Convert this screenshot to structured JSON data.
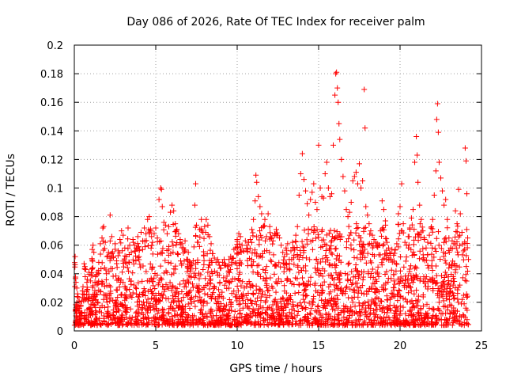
{
  "chart_data": {
    "type": "scatter",
    "title": "Day 086 of 2026, Rate Of TEC Index for receiver palm",
    "xlabel": "GPS time / hours",
    "ylabel": "ROTI / TECUs",
    "xlim": [
      0,
      25
    ],
    "ylim": [
      0,
      0.2
    ],
    "x_ticks": [
      0,
      5,
      10,
      15,
      20,
      25
    ],
    "x_tick_labels": [
      "0",
      "5",
      "10",
      "15",
      "20",
      "25"
    ],
    "y_ticks": [
      0,
      0.02,
      0.04,
      0.06,
      0.08,
      0.1,
      0.12,
      0.14,
      0.16,
      0.18,
      0.2
    ],
    "y_tick_labels": [
      "0",
      "0.02",
      "0.04",
      "0.06",
      "0.08",
      "0.1",
      "0.12",
      "0.14",
      "0.16",
      "0.18",
      "0.2"
    ],
    "grid": true,
    "marker": "+",
    "marker_color": "#ff0000",
    "series": [
      {
        "name": "ROTI",
        "points": [
          [
            0.05,
            0.052
          ],
          [
            0.1,
            0.034
          ],
          [
            0.15,
            0.03
          ],
          [
            0.2,
            0.026
          ],
          [
            0.3,
            0.021
          ],
          [
            0.4,
            0.018
          ],
          [
            0.5,
            0.028
          ],
          [
            0.6,
            0.047
          ],
          [
            0.65,
            0.045
          ],
          [
            0.7,
            0.043
          ],
          [
            0.8,
            0.036
          ],
          [
            0.9,
            0.041
          ],
          [
            1.0,
            0.035
          ],
          [
            1.1,
            0.057
          ],
          [
            1.15,
            0.06
          ],
          [
            1.2,
            0.055
          ],
          [
            1.3,
            0.038
          ],
          [
            1.4,
            0.041
          ],
          [
            1.5,
            0.048
          ],
          [
            1.6,
            0.061
          ],
          [
            1.7,
            0.065
          ],
          [
            1.75,
            0.072
          ],
          [
            1.8,
            0.073
          ],
          [
            1.9,
            0.062
          ],
          [
            2.0,
            0.052
          ],
          [
            2.1,
            0.055
          ],
          [
            2.2,
            0.081
          ],
          [
            2.3,
            0.066
          ],
          [
            2.4,
            0.052
          ],
          [
            2.5,
            0.061
          ],
          [
            2.6,
            0.049
          ],
          [
            2.7,
            0.056
          ],
          [
            2.8,
            0.064
          ],
          [
            2.9,
            0.07
          ],
          [
            3.0,
            0.067
          ],
          [
            3.1,
            0.058
          ],
          [
            3.2,
            0.052
          ],
          [
            3.3,
            0.072
          ],
          [
            3.4,
            0.06
          ],
          [
            3.5,
            0.055
          ],
          [
            3.6,
            0.064
          ],
          [
            3.7,
            0.06
          ],
          [
            3.8,
            0.058
          ],
          [
            3.9,
            0.066
          ],
          [
            4.0,
            0.057
          ],
          [
            4.1,
            0.069
          ],
          [
            4.2,
            0.063
          ],
          [
            4.3,
            0.072
          ],
          [
            4.4,
            0.068
          ],
          [
            4.5,
            0.078
          ],
          [
            4.6,
            0.08
          ],
          [
            4.7,
            0.07
          ],
          [
            4.8,
            0.062
          ],
          [
            4.9,
            0.068
          ],
          [
            5.0,
            0.072
          ],
          [
            5.1,
            0.065
          ],
          [
            5.2,
            0.092
          ],
          [
            5.3,
            0.1
          ],
          [
            5.35,
            0.099
          ],
          [
            5.4,
            0.087
          ],
          [
            5.5,
            0.076
          ],
          [
            5.6,
            0.074
          ],
          [
            5.7,
            0.068
          ],
          [
            5.8,
            0.073
          ],
          [
            5.9,
            0.083
          ],
          [
            6.0,
            0.088
          ],
          [
            6.1,
            0.084
          ],
          [
            6.2,
            0.075
          ],
          [
            6.3,
            0.071
          ],
          [
            6.4,
            0.068
          ],
          [
            6.5,
            0.064
          ],
          [
            6.6,
            0.061
          ],
          [
            6.7,
            0.058
          ],
          [
            6.8,
            0.063
          ],
          [
            6.9,
            0.05
          ],
          [
            7.0,
            0.055
          ],
          [
            7.1,
            0.048
          ],
          [
            7.2,
            0.047
          ],
          [
            7.3,
            0.049
          ],
          [
            7.4,
            0.088
          ],
          [
            7.45,
            0.103
          ],
          [
            7.5,
            0.074
          ],
          [
            7.6,
            0.062
          ],
          [
            7.7,
            0.071
          ],
          [
            7.8,
            0.078
          ],
          [
            7.9,
            0.069
          ],
          [
            8.0,
            0.073
          ],
          [
            8.1,
            0.078
          ],
          [
            8.2,
            0.074
          ],
          [
            8.3,
            0.066
          ],
          [
            8.4,
            0.061
          ],
          [
            8.5,
            0.054
          ],
          [
            8.6,
            0.051
          ],
          [
            8.7,
            0.048
          ],
          [
            8.8,
            0.05
          ],
          [
            8.9,
            0.046
          ],
          [
            9.0,
            0.044
          ],
          [
            9.1,
            0.048
          ],
          [
            9.2,
            0.05
          ],
          [
            9.3,
            0.046
          ],
          [
            9.4,
            0.045
          ],
          [
            9.5,
            0.05
          ],
          [
            9.6,
            0.052
          ],
          [
            9.7,
            0.051
          ],
          [
            9.8,
            0.057
          ],
          [
            9.9,
            0.058
          ],
          [
            10.0,
            0.064
          ],
          [
            10.1,
            0.068
          ],
          [
            10.2,
            0.066
          ],
          [
            10.3,
            0.06
          ],
          [
            10.4,
            0.056
          ],
          [
            10.5,
            0.063
          ],
          [
            10.6,
            0.06
          ],
          [
            10.7,
            0.062
          ],
          [
            10.8,
            0.064
          ],
          [
            10.9,
            0.071
          ],
          [
            11.0,
            0.078
          ],
          [
            11.1,
            0.091
          ],
          [
            11.15,
            0.109
          ],
          [
            11.2,
            0.104
          ],
          [
            11.3,
            0.094
          ],
          [
            11.4,
            0.087
          ],
          [
            11.5,
            0.082
          ],
          [
            11.6,
            0.073
          ],
          [
            11.7,
            0.078
          ],
          [
            11.8,
            0.066
          ],
          [
            11.9,
            0.082
          ],
          [
            12.0,
            0.073
          ],
          [
            12.1,
            0.065
          ],
          [
            12.2,
            0.063
          ],
          [
            12.3,
            0.068
          ],
          [
            12.4,
            0.071
          ],
          [
            12.5,
            0.067
          ],
          [
            12.6,
            0.065
          ],
          [
            12.7,
            0.06
          ],
          [
            12.8,
            0.055
          ],
          [
            12.9,
            0.052
          ],
          [
            13.0,
            0.058
          ],
          [
            13.1,
            0.061
          ],
          [
            13.2,
            0.05
          ],
          [
            13.3,
            0.056
          ],
          [
            13.4,
            0.062
          ],
          [
            13.5,
            0.058
          ],
          [
            13.6,
            0.067
          ],
          [
            13.7,
            0.073
          ],
          [
            13.8,
            0.095
          ],
          [
            13.9,
            0.11
          ],
          [
            14.0,
            0.124
          ],
          [
            14.1,
            0.106
          ],
          [
            14.2,
            0.098
          ],
          [
            14.3,
            0.089
          ],
          [
            14.4,
            0.081
          ],
          [
            14.5,
            0.092
          ],
          [
            14.6,
            0.097
          ],
          [
            14.7,
            0.103
          ],
          [
            14.8,
            0.09
          ],
          [
            14.9,
            0.085
          ],
          [
            15.0,
            0.13
          ],
          [
            15.1,
            0.1
          ],
          [
            15.2,
            0.094
          ],
          [
            15.3,
            0.093
          ],
          [
            15.4,
            0.11
          ],
          [
            15.5,
            0.118
          ],
          [
            15.6,
            0.1
          ],
          [
            15.7,
            0.094
          ],
          [
            15.8,
            0.096
          ],
          [
            15.9,
            0.13
          ],
          [
            16.0,
            0.165
          ],
          [
            16.05,
            0.18
          ],
          [
            16.1,
            0.181
          ],
          [
            16.15,
            0.17
          ],
          [
            16.2,
            0.16
          ],
          [
            16.25,
            0.145
          ],
          [
            16.3,
            0.134
          ],
          [
            16.4,
            0.12
          ],
          [
            16.5,
            0.108
          ],
          [
            16.6,
            0.098
          ],
          [
            16.7,
            0.085
          ],
          [
            16.8,
            0.08
          ],
          [
            16.9,
            0.083
          ],
          [
            17.0,
            0.09
          ],
          [
            17.1,
            0.105
          ],
          [
            17.2,
            0.108
          ],
          [
            17.3,
            0.111
          ],
          [
            17.4,
            0.103
          ],
          [
            17.5,
            0.117
          ],
          [
            17.6,
            0.1
          ],
          [
            17.7,
            0.105
          ],
          [
            17.8,
            0.169
          ],
          [
            17.85,
            0.142
          ],
          [
            17.9,
            0.087
          ],
          [
            18.0,
            0.081
          ],
          [
            18.1,
            0.075
          ],
          [
            18.2,
            0.07
          ],
          [
            18.3,
            0.067
          ],
          [
            18.4,
            0.064
          ],
          [
            18.5,
            0.062
          ],
          [
            18.6,
            0.061
          ],
          [
            18.7,
            0.06
          ],
          [
            18.8,
            0.07
          ],
          [
            18.9,
            0.091
          ],
          [
            19.0,
            0.085
          ],
          [
            19.1,
            0.077
          ],
          [
            19.2,
            0.062
          ],
          [
            19.3,
            0.058
          ],
          [
            19.4,
            0.054
          ],
          [
            19.5,
            0.057
          ],
          [
            19.6,
            0.053
          ],
          [
            19.7,
            0.057
          ],
          [
            19.8,
            0.061
          ],
          [
            19.9,
            0.082
          ],
          [
            20.0,
            0.087
          ],
          [
            20.1,
            0.103
          ],
          [
            20.2,
            0.075
          ],
          [
            20.3,
            0.062
          ],
          [
            20.4,
            0.06
          ],
          [
            20.5,
            0.066
          ],
          [
            20.6,
            0.072
          ],
          [
            20.7,
            0.079
          ],
          [
            20.8,
            0.085
          ],
          [
            20.9,
            0.118
          ],
          [
            21.0,
            0.136
          ],
          [
            21.05,
            0.123
          ],
          [
            21.1,
            0.104
          ],
          [
            21.2,
            0.088
          ],
          [
            21.3,
            0.078
          ],
          [
            21.4,
            0.07
          ],
          [
            21.5,
            0.064
          ],
          [
            21.6,
            0.058
          ],
          [
            21.7,
            0.062
          ],
          [
            21.8,
            0.067
          ],
          [
            21.9,
            0.072
          ],
          [
            22.0,
            0.078
          ],
          [
            22.1,
            0.095
          ],
          [
            22.2,
            0.112
          ],
          [
            22.25,
            0.148
          ],
          [
            22.3,
            0.159
          ],
          [
            22.35,
            0.139
          ],
          [
            22.4,
            0.118
          ],
          [
            22.5,
            0.107
          ],
          [
            22.6,
            0.098
          ],
          [
            22.7,
            0.088
          ],
          [
            22.8,
            0.092
          ],
          [
            22.9,
            0.078
          ],
          [
            23.0,
            0.065
          ],
          [
            23.1,
            0.058
          ],
          [
            23.2,
            0.063
          ],
          [
            23.3,
            0.061
          ],
          [
            23.4,
            0.084
          ],
          [
            23.5,
            0.075
          ],
          [
            23.6,
            0.099
          ],
          [
            23.7,
            0.082
          ],
          [
            23.8,
            0.069
          ],
          [
            23.9,
            0.056
          ],
          [
            24.0,
            0.128
          ],
          [
            24.05,
            0.119
          ],
          [
            24.1,
            0.096
          ],
          [
            24.15,
            0.065
          ],
          [
            24.2,
            0.05
          ]
        ],
        "dense_band": {
          "description": "continuous cloud of samples across 0-24.2 h",
          "x_range": [
            0,
            24.2
          ],
          "y_floor": 0.004,
          "samples": 2600
        }
      }
    ]
  }
}
